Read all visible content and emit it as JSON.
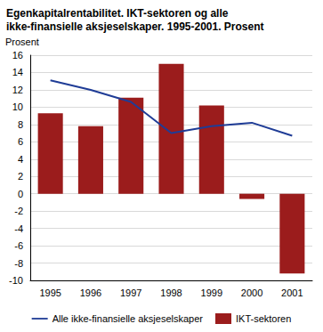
{
  "chart_data": {
    "type": "bar",
    "title": "Egenkapitalrentabilitet. IKT-sektoren og alle ikke-finansielle aksjeselskaper. 1995-2001. Prosent",
    "y_label": "Prosent",
    "categories": [
      "1995",
      "1996",
      "1997",
      "1998",
      "1999",
      "2000",
      "2001"
    ],
    "series": [
      {
        "name": "Alle ikke-finansielle aksjeselskaper",
        "type": "line",
        "color": "#1f3c96",
        "values": [
          13.1,
          12.0,
          10.6,
          7.0,
          7.8,
          8.2,
          6.7
        ]
      },
      {
        "name": "IKT-sektoren",
        "type": "bar",
        "color": "#9b1c1c",
        "values": [
          9.3,
          7.8,
          11.1,
          15.0,
          10.2,
          -0.6,
          -9.2
        ]
      }
    ],
    "ylim": [
      -10,
      16
    ],
    "yticks": [
      -10,
      -8,
      -6,
      -4,
      -2,
      0,
      2,
      4,
      6,
      8,
      10,
      12,
      14,
      16
    ],
    "grid": true,
    "legend": "bottom"
  }
}
